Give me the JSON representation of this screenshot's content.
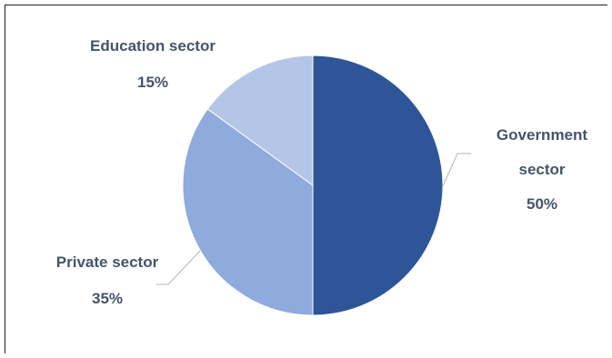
{
  "chart_data": {
    "type": "pie",
    "title": "",
    "slices": [
      {
        "label_lines": [
          "Government",
          "sector"
        ],
        "value": 50,
        "value_label": "50%",
        "color": "#2e5597"
      },
      {
        "label_lines": [
          "Private sector"
        ],
        "value": 35,
        "value_label": "35%",
        "color": "#8faadc"
      },
      {
        "label_lines": [
          "Education sector"
        ],
        "value": 15,
        "value_label": "15%",
        "color": "#b4c6e7"
      }
    ],
    "start_angle_deg": 0,
    "direction": "clockwise",
    "legend": "none",
    "label_color": "#44546a",
    "leader_line_color": "#b0b7c3"
  }
}
